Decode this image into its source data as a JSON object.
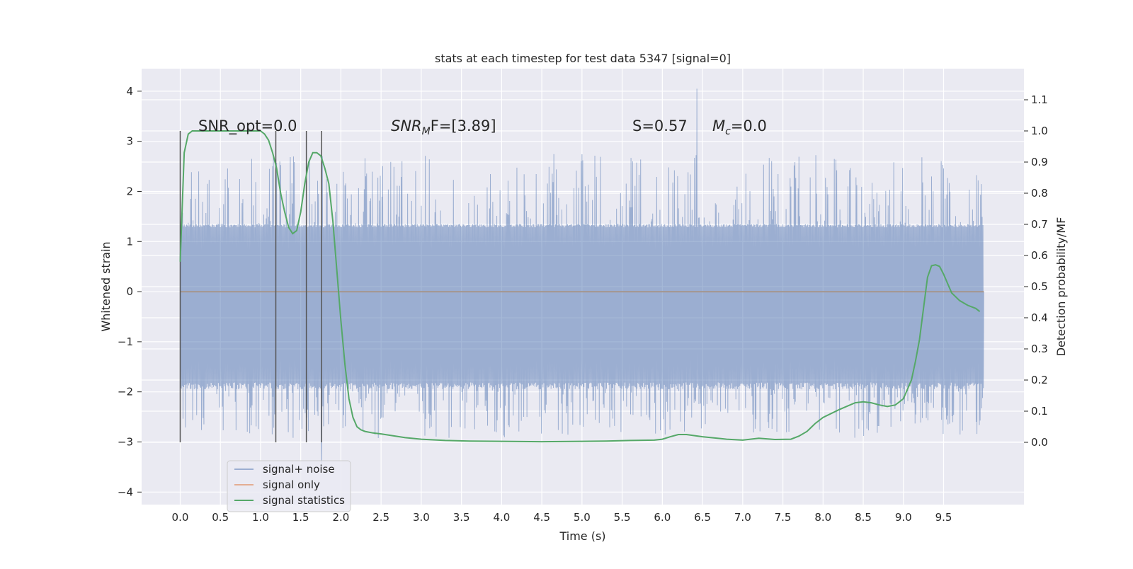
{
  "chart_data": {
    "type": "line",
    "title": "stats at each timestep for test data 5347 [signal=0]",
    "xlabel": "Time (s)",
    "ylabel": "Whitened strain",
    "ylabel_right": "Detection probability/MF",
    "xlim": [
      -0.48,
      10.5
    ],
    "ylim": [
      -4.25,
      4.45
    ],
    "ylim_right": [
      -0.2,
      1.2
    ],
    "x_ticks": [
      "0.0",
      "0.5",
      "1.0",
      "1.5",
      "2.0",
      "2.5",
      "3.0",
      "3.5",
      "4.0",
      "4.5",
      "5.0",
      "5.5",
      "6.0",
      "6.5",
      "7.0",
      "7.5",
      "8.0",
      "8.5",
      "9.0",
      "9.5"
    ],
    "y_ticks": [
      "4",
      "3",
      "2",
      "1",
      "0",
      "−1",
      "−2",
      "−3",
      "−4"
    ],
    "y_right_ticks": [
      "1.1",
      "1.0",
      "0.9",
      "0.8",
      "0.7",
      "0.6",
      "0.5",
      "0.4",
      "0.3",
      "0.2",
      "0.1",
      "0.0"
    ],
    "grid": true,
    "legend_position": "lower-left",
    "colors": {
      "background": "#EAEAF2",
      "grid": "#FFFFFF",
      "noise": "#4C72B0",
      "signal_only": "#DD8452",
      "statistics": "#55A868",
      "markers": "#555555"
    },
    "annotations": {
      "snr_opt": "SNR_opt=0.0",
      "snr_mf_base": "SNR",
      "snr_mf_sub": "M",
      "snr_mf_rest": "F=[3.89]",
      "s_value": "S=0.57",
      "mc_base": "M",
      "mc_sub": "c",
      "mc_rest": "=0.0"
    },
    "markers_x": [
      0.0,
      1.19,
      1.57,
      1.76
    ],
    "series": [
      {
        "name": "signal+ noise",
        "axis": "left",
        "summary": {
          "t_start": 0.0,
          "t_end": 10.0,
          "core_range": [
            -1.95,
            1.35
          ],
          "max": 4.05,
          "max_at": 6.43,
          "min": -3.5,
          "min_at": 1.76
        }
      },
      {
        "name": "signal only",
        "axis": "left",
        "x": [
          0.0,
          10.0
        ],
        "y": [
          0.0,
          0.0
        ]
      },
      {
        "name": "signal statistics",
        "axis": "right",
        "x": [
          0.0,
          0.05,
          0.1,
          0.15,
          0.2,
          0.3,
          0.4,
          0.5,
          0.6,
          0.7,
          0.8,
          0.9,
          1.0,
          1.05,
          1.1,
          1.15,
          1.2,
          1.25,
          1.3,
          1.35,
          1.4,
          1.45,
          1.5,
          1.55,
          1.6,
          1.65,
          1.7,
          1.75,
          1.8,
          1.85,
          1.9,
          1.95,
          2.0,
          2.05,
          2.1,
          2.15,
          2.2,
          2.25,
          2.3,
          2.4,
          2.5,
          2.6,
          2.8,
          3.0,
          3.3,
          3.6,
          4.0,
          4.5,
          5.0,
          5.3,
          5.6,
          5.9,
          6.0,
          6.1,
          6.2,
          6.3,
          6.5,
          6.8,
          7.0,
          7.2,
          7.4,
          7.6,
          7.7,
          7.8,
          7.9,
          8.0,
          8.2,
          8.4,
          8.5,
          8.6,
          8.7,
          8.8,
          8.9,
          9.0,
          9.05,
          9.1,
          9.15,
          9.2,
          9.25,
          9.3,
          9.35,
          9.4,
          9.45,
          9.5,
          9.55,
          9.6,
          9.7,
          9.8,
          9.9,
          9.95
        ],
        "y": [
          0.58,
          0.93,
          0.99,
          1.0,
          1.0,
          1.0,
          1.0,
          1.0,
          1.0,
          1.0,
          1.0,
          1.0,
          1.0,
          0.99,
          0.97,
          0.93,
          0.88,
          0.8,
          0.74,
          0.69,
          0.67,
          0.68,
          0.74,
          0.83,
          0.9,
          0.93,
          0.93,
          0.92,
          0.88,
          0.83,
          0.71,
          0.55,
          0.39,
          0.25,
          0.14,
          0.08,
          0.05,
          0.04,
          0.035,
          0.03,
          0.027,
          0.023,
          0.015,
          0.01,
          0.006,
          0.004,
          0.003,
          0.002,
          0.003,
          0.004,
          0.006,
          0.007,
          0.01,
          0.018,
          0.025,
          0.025,
          0.018,
          0.01,
          0.007,
          0.013,
          0.009,
          0.01,
          0.02,
          0.035,
          0.06,
          0.08,
          0.105,
          0.127,
          0.13,
          0.127,
          0.12,
          0.115,
          0.12,
          0.14,
          0.17,
          0.2,
          0.26,
          0.33,
          0.43,
          0.53,
          0.567,
          0.57,
          0.565,
          0.54,
          0.51,
          0.48,
          0.455,
          0.44,
          0.43,
          0.42
        ]
      }
    ]
  }
}
